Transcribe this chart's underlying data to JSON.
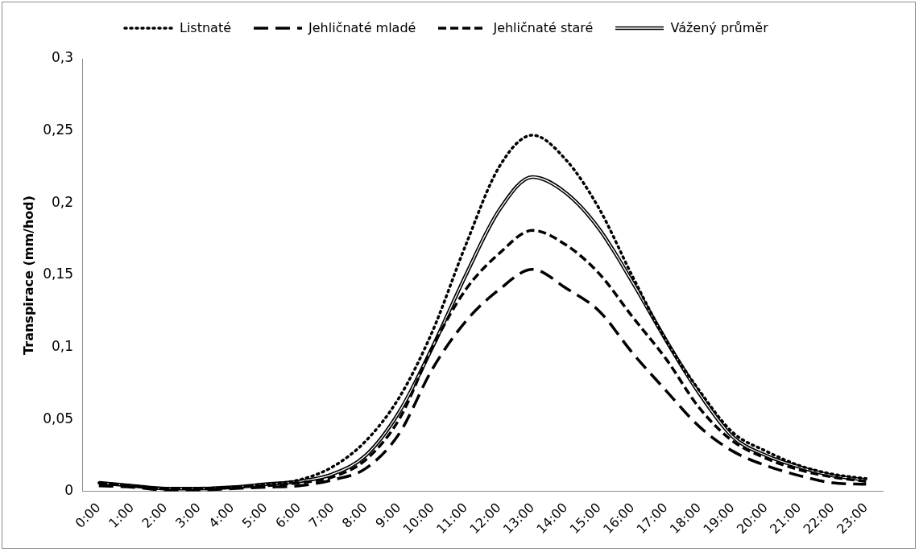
{
  "chart_data": {
    "type": "line",
    "ylabel": "Transpirace (mm/hod)",
    "categories": [
      "0:00",
      "1:00",
      "2:00",
      "3:00",
      "4:00",
      "5:00",
      "6:00",
      "7:00",
      "8:00",
      "9:00",
      "10:00",
      "11:00",
      "12:00",
      "13:00",
      "14:00",
      "15:00",
      "16:00",
      "17:00",
      "18:00",
      "19:00",
      "20:00",
      "21:00",
      "22:00",
      "23:00"
    ],
    "series": [
      {
        "name": "Listnaté",
        "color": "#000000",
        "line_style": "dotted",
        "values": [
          0.006,
          0.004,
          0.002,
          0.002,
          0.003,
          0.005,
          0.008,
          0.017,
          0.035,
          0.065,
          0.111,
          0.171,
          0.225,
          0.247,
          0.23,
          0.196,
          0.149,
          0.105,
          0.07,
          0.041,
          0.028,
          0.018,
          0.012,
          0.009
        ]
      },
      {
        "name": "Jehličnaté mladé",
        "color": "#000000",
        "line_style": "dashed",
        "values": [
          0.004,
          0.003,
          0.001,
          0.001,
          0.002,
          0.003,
          0.004,
          0.008,
          0.016,
          0.04,
          0.085,
          0.118,
          0.14,
          0.154,
          0.141,
          0.125,
          0.096,
          0.07,
          0.045,
          0.028,
          0.018,
          0.011,
          0.006,
          0.005
        ]
      },
      {
        "name": "Jehličnaté staré",
        "color": "#000000",
        "line_style": "dashed",
        "values": [
          0.006,
          0.004,
          0.002,
          0.002,
          0.003,
          0.004,
          0.006,
          0.01,
          0.022,
          0.05,
          0.1,
          0.14,
          0.165,
          0.181,
          0.171,
          0.151,
          0.121,
          0.092,
          0.058,
          0.035,
          0.023,
          0.015,
          0.01,
          0.007
        ]
      },
      {
        "name": "Vážený průměr",
        "color": "#000000",
        "line_style": "solid",
        "values": [
          0.006,
          0.004,
          0.002,
          0.002,
          0.003,
          0.005,
          0.007,
          0.012,
          0.025,
          0.055,
          0.1,
          0.15,
          0.195,
          0.218,
          0.207,
          0.182,
          0.145,
          0.105,
          0.068,
          0.038,
          0.025,
          0.017,
          0.011,
          0.008
        ]
      }
    ],
    "ylim": [
      0,
      0.3
    ],
    "yticks": [
      {
        "value": 0,
        "label": "0"
      },
      {
        "value": 0.05,
        "label": "0,05"
      },
      {
        "value": 0.1,
        "label": "0,1"
      },
      {
        "value": 0.15,
        "label": "0,15"
      },
      {
        "value": 0.2,
        "label": "0,2"
      },
      {
        "value": 0.25,
        "label": "0,25"
      },
      {
        "value": 0.3,
        "label": "0,3"
      }
    ],
    "grid": false,
    "legend": "top",
    "marker": "none"
  }
}
